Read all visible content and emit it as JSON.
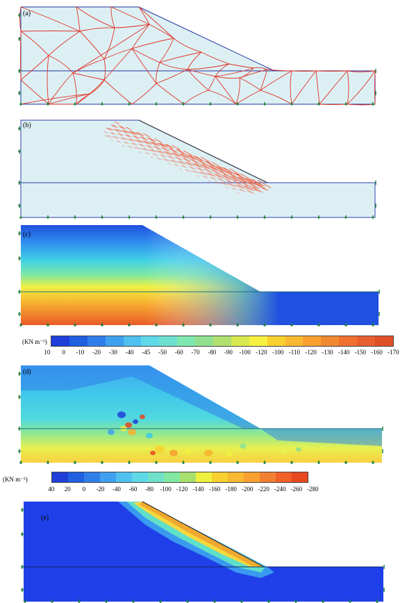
{
  "panels": {
    "a": "(a)",
    "b": "(b)",
    "c": "(c)",
    "d": "(d)",
    "e": "(e)"
  },
  "colorbar_c": {
    "unit": "(KN m⁻²)",
    "ticks": [
      "10",
      "0",
      "-10",
      "-20",
      "-30",
      "-40",
      "-45",
      "-50",
      "-60",
      "-70",
      "-80",
      "-90",
      "-100",
      "-120",
      "-100",
      "-110",
      "-120",
      "-130",
      "-140",
      "-150",
      "-160",
      "-170"
    ],
    "colors": [
      "#1f3fd8",
      "#1f5fe0",
      "#2f7fea",
      "#3fa0f0",
      "#4fc0f0",
      "#5fd8e8",
      "#6fe0d0",
      "#7fe8b0",
      "#90e090",
      "#b0e070",
      "#d8e850",
      "#f8f040",
      "#f8d030",
      "#f8b830",
      "#f8a030",
      "#f08830",
      "#f07030",
      "#e86030",
      "#e05028"
    ]
  },
  "colorbar_d": {
    "unit": "(KN m⁻²)",
    "ticks": [
      "40",
      "20",
      "0",
      "-20",
      "-40",
      "-60",
      "-80",
      "-100",
      "-120",
      "-140",
      "-160",
      "-180",
      "-200",
      "-220",
      "-240",
      "-260",
      "-280"
    ],
    "colors": [
      "#1f3fd8",
      "#1f5fe0",
      "#2f7fea",
      "#3fa0f0",
      "#4fc0f0",
      "#5fd8e8",
      "#70e0c8",
      "#80e8a0",
      "#a8e070",
      "#f0f040",
      "#f8d030",
      "#f8b830",
      "#f8a030",
      "#f08030",
      "#f06028",
      "#e84820"
    ]
  }
}
